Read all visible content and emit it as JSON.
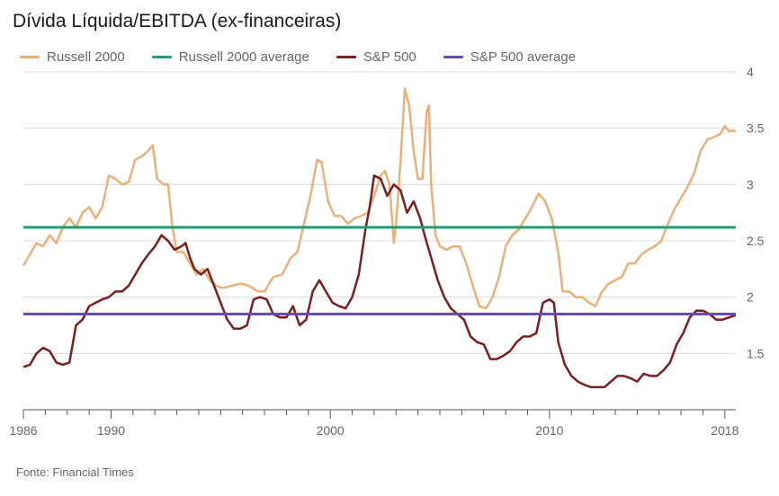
{
  "title": "Dívida Líquida/EBITDA (ex-financeiras)",
  "source": "Fonte: Financial Times",
  "chart_data": {
    "type": "line",
    "title": "Dívida Líquida/EBITDA (ex-financeiras)",
    "xlabel": "",
    "ylabel": "",
    "xlim": [
      1986,
      2018.5
    ],
    "ylim": [
      1,
      4
    ],
    "grid": true,
    "y_axis_side": "right",
    "legend_position": "top",
    "y_ticks": [
      "1.5",
      "2",
      "2.5",
      "3",
      "3.5",
      "4"
    ],
    "x_ticks": [
      "1986",
      "1990",
      "2000",
      "2010",
      "2018"
    ],
    "x_tick_values": [
      1986,
      1990,
      2000,
      2010,
      2018
    ],
    "y_tick_values": [
      1.5,
      2,
      2.5,
      3,
      3.5,
      4
    ],
    "series": [
      {
        "name": "Russell 2000",
        "color": "#eab07a",
        "kind": "line",
        "points": [
          [
            1986.0,
            2.28
          ],
          [
            1986.3,
            2.38
          ],
          [
            1986.6,
            2.48
          ],
          [
            1986.9,
            2.45
          ],
          [
            1987.2,
            2.55
          ],
          [
            1987.5,
            2.48
          ],
          [
            1987.8,
            2.62
          ],
          [
            1988.1,
            2.7
          ],
          [
            1988.4,
            2.62
          ],
          [
            1988.7,
            2.75
          ],
          [
            1989.0,
            2.8
          ],
          [
            1989.3,
            2.7
          ],
          [
            1989.6,
            2.8
          ],
          [
            1989.9,
            3.08
          ],
          [
            1990.2,
            3.05
          ],
          [
            1990.5,
            3.0
          ],
          [
            1990.8,
            3.02
          ],
          [
            1991.1,
            3.22
          ],
          [
            1991.4,
            3.25
          ],
          [
            1991.7,
            3.3
          ],
          [
            1991.9,
            3.35
          ],
          [
            1992.1,
            3.05
          ],
          [
            1992.4,
            3.0
          ],
          [
            1992.6,
            3.0
          ],
          [
            1992.8,
            2.62
          ],
          [
            1993.0,
            2.4
          ],
          [
            1993.3,
            2.4
          ],
          [
            1993.6,
            2.3
          ],
          [
            1993.9,
            2.2
          ],
          [
            1994.2,
            2.25
          ],
          [
            1994.5,
            2.15
          ],
          [
            1994.8,
            2.1
          ],
          [
            1995.1,
            2.08
          ],
          [
            1995.5,
            2.1
          ],
          [
            1995.9,
            2.12
          ],
          [
            1996.3,
            2.1
          ],
          [
            1996.7,
            2.05
          ],
          [
            1997.0,
            2.05
          ],
          [
            1997.4,
            2.18
          ],
          [
            1997.8,
            2.2
          ],
          [
            1998.2,
            2.35
          ],
          [
            1998.5,
            2.4
          ],
          [
            1998.8,
            2.65
          ],
          [
            1999.1,
            2.9
          ],
          [
            1999.4,
            3.22
          ],
          [
            1999.6,
            3.2
          ],
          [
            1999.9,
            2.85
          ],
          [
            2000.2,
            2.72
          ],
          [
            2000.5,
            2.72
          ],
          [
            2000.8,
            2.65
          ],
          [
            2001.1,
            2.7
          ],
          [
            2001.4,
            2.72
          ],
          [
            2001.7,
            2.75
          ],
          [
            2002.0,
            2.9
          ],
          [
            2002.3,
            3.08
          ],
          [
            2002.5,
            3.12
          ],
          [
            2002.7,
            3.0
          ],
          [
            2002.9,
            2.48
          ],
          [
            2003.0,
            2.65
          ],
          [
            2003.2,
            3.2
          ],
          [
            2003.4,
            3.85
          ],
          [
            2003.6,
            3.7
          ],
          [
            2003.8,
            3.3
          ],
          [
            2004.0,
            3.05
          ],
          [
            2004.2,
            3.05
          ],
          [
            2004.4,
            3.65
          ],
          [
            2004.5,
            3.7
          ],
          [
            2004.6,
            3.0
          ],
          [
            2004.8,
            2.55
          ],
          [
            2005.0,
            2.45
          ],
          [
            2005.3,
            2.42
          ],
          [
            2005.6,
            2.45
          ],
          [
            2005.9,
            2.45
          ],
          [
            2006.2,
            2.3
          ],
          [
            2006.5,
            2.1
          ],
          [
            2006.8,
            1.92
          ],
          [
            2007.1,
            1.9
          ],
          [
            2007.4,
            2.0
          ],
          [
            2007.7,
            2.18
          ],
          [
            2008.0,
            2.45
          ],
          [
            2008.3,
            2.55
          ],
          [
            2008.6,
            2.6
          ],
          [
            2008.9,
            2.7
          ],
          [
            2009.2,
            2.8
          ],
          [
            2009.5,
            2.92
          ],
          [
            2009.8,
            2.85
          ],
          [
            2010.1,
            2.7
          ],
          [
            2010.4,
            2.4
          ],
          [
            2010.6,
            2.05
          ],
          [
            2010.9,
            2.05
          ],
          [
            2011.2,
            2.0
          ],
          [
            2011.5,
            2.0
          ],
          [
            2011.8,
            1.95
          ],
          [
            2012.1,
            1.92
          ],
          [
            2012.4,
            2.05
          ],
          [
            2012.7,
            2.12
          ],
          [
            2013.0,
            2.15
          ],
          [
            2013.3,
            2.18
          ],
          [
            2013.6,
            2.3
          ],
          [
            2013.9,
            2.3
          ],
          [
            2014.2,
            2.38
          ],
          [
            2014.5,
            2.42
          ],
          [
            2014.8,
            2.45
          ],
          [
            2015.1,
            2.5
          ],
          [
            2015.4,
            2.65
          ],
          [
            2015.7,
            2.78
          ],
          [
            2016.0,
            2.88
          ],
          [
            2016.3,
            2.98
          ],
          [
            2016.6,
            3.1
          ],
          [
            2016.9,
            3.3
          ],
          [
            2017.2,
            3.4
          ],
          [
            2017.5,
            3.42
          ],
          [
            2017.8,
            3.45
          ],
          [
            2018.0,
            3.52
          ],
          [
            2018.2,
            3.47
          ],
          [
            2018.4,
            3.48
          ],
          [
            2018.5,
            3.47
          ]
        ]
      },
      {
        "name": "Russell 2000 average",
        "color": "#1f9e73",
        "kind": "hline",
        "value": 2.62
      },
      {
        "name": "S&P 500",
        "color": "#7a1e1e",
        "kind": "line",
        "points": [
          [
            1986.0,
            1.38
          ],
          [
            1986.3,
            1.4
          ],
          [
            1986.6,
            1.5
          ],
          [
            1986.9,
            1.55
          ],
          [
            1987.2,
            1.52
          ],
          [
            1987.5,
            1.42
          ],
          [
            1987.8,
            1.4
          ],
          [
            1988.1,
            1.42
          ],
          [
            1988.4,
            1.75
          ],
          [
            1988.7,
            1.8
          ],
          [
            1989.0,
            1.92
          ],
          [
            1989.3,
            1.95
          ],
          [
            1989.6,
            1.98
          ],
          [
            1989.9,
            2.0
          ],
          [
            1990.2,
            2.05
          ],
          [
            1990.5,
            2.05
          ],
          [
            1990.8,
            2.1
          ],
          [
            1991.1,
            2.2
          ],
          [
            1991.4,
            2.3
          ],
          [
            1991.7,
            2.38
          ],
          [
            1992.0,
            2.45
          ],
          [
            1992.3,
            2.55
          ],
          [
            1992.6,
            2.5
          ],
          [
            1992.9,
            2.42
          ],
          [
            1993.2,
            2.45
          ],
          [
            1993.4,
            2.48
          ],
          [
            1993.6,
            2.35
          ],
          [
            1993.8,
            2.25
          ],
          [
            1994.1,
            2.2
          ],
          [
            1994.4,
            2.25
          ],
          [
            1994.7,
            2.1
          ],
          [
            1995.0,
            1.95
          ],
          [
            1995.3,
            1.8
          ],
          [
            1995.6,
            1.72
          ],
          [
            1995.9,
            1.72
          ],
          [
            1996.2,
            1.75
          ],
          [
            1996.5,
            1.98
          ],
          [
            1996.8,
            2.0
          ],
          [
            1997.1,
            1.98
          ],
          [
            1997.4,
            1.85
          ],
          [
            1997.7,
            1.82
          ],
          [
            1998.0,
            1.82
          ],
          [
            1998.3,
            1.92
          ],
          [
            1998.6,
            1.75
          ],
          [
            1998.9,
            1.8
          ],
          [
            1999.2,
            2.05
          ],
          [
            1999.5,
            2.15
          ],
          [
            1999.8,
            2.05
          ],
          [
            2000.1,
            1.95
          ],
          [
            2000.4,
            1.92
          ],
          [
            2000.7,
            1.9
          ],
          [
            2001.0,
            2.0
          ],
          [
            2001.3,
            2.2
          ],
          [
            2001.6,
            2.6
          ],
          [
            2001.8,
            2.8
          ],
          [
            2002.0,
            3.08
          ],
          [
            2002.3,
            3.05
          ],
          [
            2002.6,
            2.9
          ],
          [
            2002.9,
            3.0
          ],
          [
            2003.2,
            2.95
          ],
          [
            2003.5,
            2.75
          ],
          [
            2003.8,
            2.85
          ],
          [
            2004.1,
            2.7
          ],
          [
            2004.3,
            2.55
          ],
          [
            2004.6,
            2.35
          ],
          [
            2004.9,
            2.15
          ],
          [
            2005.2,
            2.0
          ],
          [
            2005.5,
            1.9
          ],
          [
            2005.8,
            1.85
          ],
          [
            2006.1,
            1.8
          ],
          [
            2006.4,
            1.65
          ],
          [
            2006.7,
            1.6
          ],
          [
            2007.0,
            1.58
          ],
          [
            2007.3,
            1.45
          ],
          [
            2007.6,
            1.45
          ],
          [
            2007.9,
            1.48
          ],
          [
            2008.2,
            1.52
          ],
          [
            2008.5,
            1.6
          ],
          [
            2008.8,
            1.65
          ],
          [
            2009.1,
            1.65
          ],
          [
            2009.4,
            1.68
          ],
          [
            2009.7,
            1.95
          ],
          [
            2010.0,
            1.98
          ],
          [
            2010.2,
            1.95
          ],
          [
            2010.4,
            1.6
          ],
          [
            2010.7,
            1.4
          ],
          [
            2011.0,
            1.3
          ],
          [
            2011.3,
            1.25
          ],
          [
            2011.6,
            1.22
          ],
          [
            2011.9,
            1.2
          ],
          [
            2012.2,
            1.2
          ],
          [
            2012.5,
            1.2
          ],
          [
            2012.8,
            1.25
          ],
          [
            2013.1,
            1.3
          ],
          [
            2013.4,
            1.3
          ],
          [
            2013.7,
            1.28
          ],
          [
            2014.0,
            1.25
          ],
          [
            2014.3,
            1.32
          ],
          [
            2014.6,
            1.3
          ],
          [
            2014.9,
            1.3
          ],
          [
            2015.2,
            1.35
          ],
          [
            2015.5,
            1.42
          ],
          [
            2015.8,
            1.58
          ],
          [
            2016.1,
            1.68
          ],
          [
            2016.4,
            1.82
          ],
          [
            2016.7,
            1.88
          ],
          [
            2017.0,
            1.88
          ],
          [
            2017.3,
            1.85
          ],
          [
            2017.6,
            1.8
          ],
          [
            2017.9,
            1.8
          ],
          [
            2018.2,
            1.82
          ],
          [
            2018.5,
            1.84
          ]
        ]
      },
      {
        "name": "S&P 500 average",
        "color": "#6b4ab0",
        "kind": "hline",
        "value": 1.85
      }
    ]
  }
}
